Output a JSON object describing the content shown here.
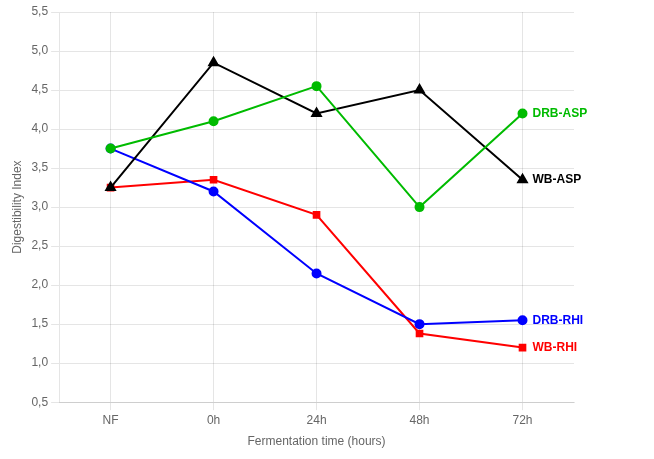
{
  "chart_data": {
    "type": "line",
    "xlabel": "Fermentation time (hours)",
    "ylabel": "Digestibility Index",
    "categories": [
      "NF",
      "0h",
      "24h",
      "48h",
      "72h"
    ],
    "series": [
      {
        "name": "DRB-ASP",
        "color": "#00bb00",
        "marker": "circle",
        "values": [
          3.75,
          4.1,
          4.55,
          3.0,
          4.2
        ]
      },
      {
        "name": "WB-ASP",
        "color": "#000000",
        "marker": "triangle",
        "values": [
          3.25,
          4.85,
          4.2,
          4.5,
          3.35
        ]
      },
      {
        "name": "DRB-RHI",
        "color": "#0000ff",
        "marker": "circle",
        "values": [
          3.75,
          3.2,
          2.15,
          1.5,
          1.55
        ]
      },
      {
        "name": "WB-RHI",
        "color": "#ff0000",
        "marker": "square",
        "values": [
          3.25,
          3.35,
          2.9,
          1.38,
          1.2
        ]
      }
    ],
    "ylim": [
      0.5,
      5.5
    ],
    "yticks": [
      {
        "value": 0.5,
        "label": "0,5"
      },
      {
        "value": 1.0,
        "label": "1,0"
      },
      {
        "value": 1.5,
        "label": "1,5"
      },
      {
        "value": 2.0,
        "label": "2,0"
      },
      {
        "value": 2.5,
        "label": "2,5"
      },
      {
        "value": 3.0,
        "label": "3,0"
      },
      {
        "value": 3.5,
        "label": "3,5"
      },
      {
        "value": 4.0,
        "label": "4,0"
      },
      {
        "value": 4.5,
        "label": "4,5"
      },
      {
        "value": 5.0,
        "label": "5,0"
      },
      {
        "value": 5.5,
        "label": "5,5"
      }
    ],
    "grid": true,
    "annotations": [
      {
        "text": "DRB-ASP",
        "color": "#00bb00"
      },
      {
        "text": "WB-ASP",
        "color": "#000000"
      },
      {
        "text": "DRB-RHI",
        "color": "#0000ff"
      },
      {
        "text": "WB-RHI",
        "color": "#ff0000"
      }
    ]
  }
}
